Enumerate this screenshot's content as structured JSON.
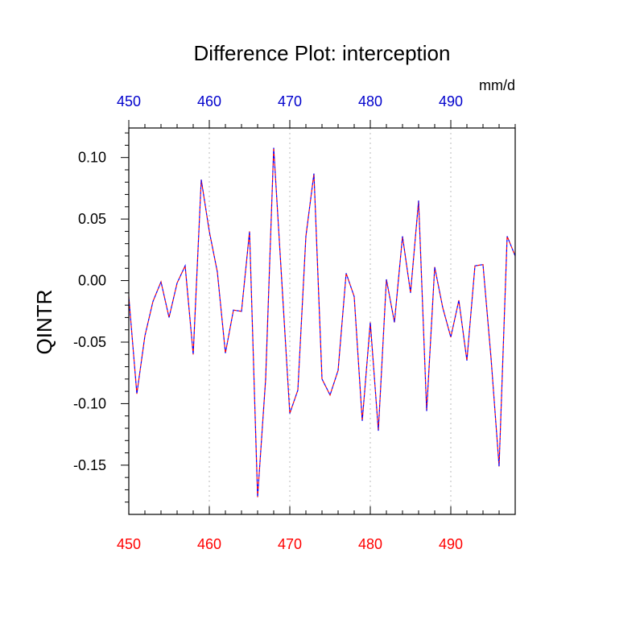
{
  "chart_data": {
    "type": "line",
    "title": "Difference Plot: interception",
    "ylabel": "QINTR",
    "units": "mm/d",
    "xlim": [
      450,
      498
    ],
    "ylim": [
      -0.19,
      0.124
    ],
    "bottom_ticks": [
      "450",
      "460",
      "470",
      "480",
      "490"
    ],
    "top_ticks": [
      "450",
      "460",
      "470",
      "480",
      "490"
    ],
    "y_ticks": [
      "0.10",
      "0.05",
      "0.00",
      "-0.05",
      "-0.10",
      "-0.15"
    ],
    "grid": "vertical-dotted",
    "colors": {
      "line_dash_1": "#ff0000",
      "line_dash_2": "#0000ff",
      "bottom_tick_labels": "#ff0000",
      "top_tick_labels": "#0000cc",
      "grid": "#bbbbbb"
    },
    "series": [
      {
        "x": [
          450,
          451,
          452,
          453,
          454,
          455,
          456,
          457,
          458,
          459,
          460,
          461,
          462,
          463,
          464,
          465,
          466,
          467,
          468,
          469,
          470,
          471,
          472,
          473,
          474,
          475,
          476,
          477,
          478,
          479,
          480,
          481,
          482,
          483,
          484,
          485,
          486,
          487,
          488,
          489,
          490,
          491,
          492,
          493,
          494,
          495,
          496,
          497,
          498
        ],
        "values": [
          -0.013,
          -0.092,
          -0.045,
          -0.017,
          -0.001,
          -0.03,
          -0.002,
          0.012,
          -0.06,
          0.082,
          0.04,
          0.007,
          -0.059,
          -0.024,
          -0.025,
          0.04,
          -0.176,
          -0.08,
          0.108,
          0.0,
          -0.108,
          -0.089,
          0.036,
          0.087,
          -0.08,
          -0.093,
          -0.073,
          0.006,
          -0.013,
          -0.114,
          -0.034,
          -0.122,
          0.001,
          -0.034,
          0.036,
          -0.01,
          0.065,
          -0.106,
          0.011,
          -0.022,
          -0.046,
          -0.016,
          -0.065,
          0.012,
          0.013,
          -0.063,
          -0.151,
          0.036,
          0.02
        ]
      }
    ]
  }
}
